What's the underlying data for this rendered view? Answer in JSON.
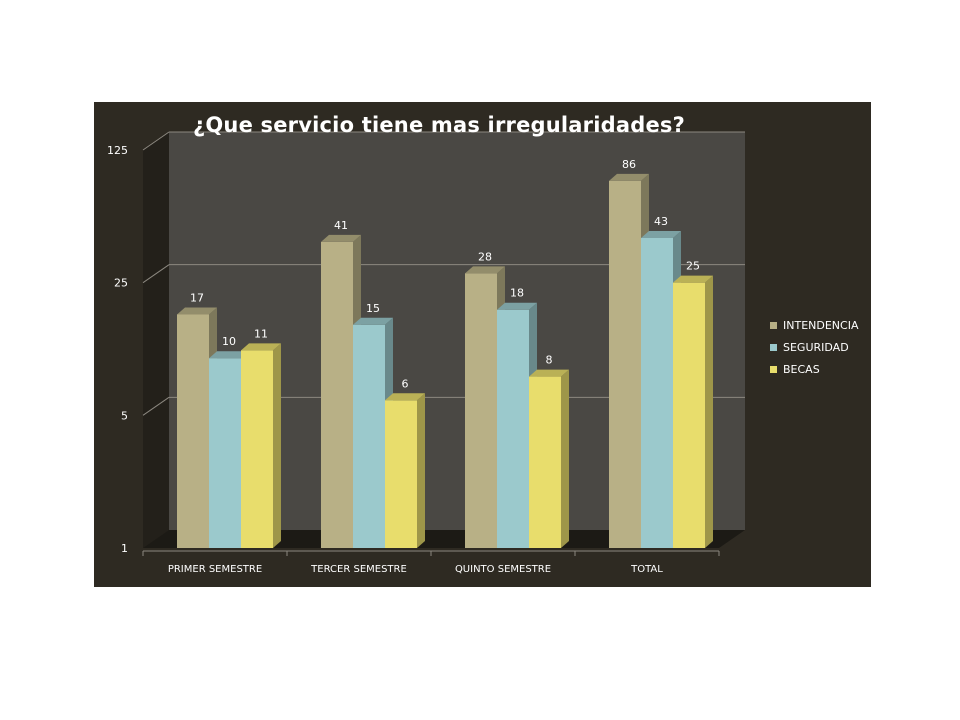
{
  "chart_data": {
    "type": "bar",
    "title": "¿Que servicio tiene mas irregularidades?",
    "categories": [
      "PRIMER SEMESTRE",
      "TERCER SEMESTRE",
      "QUINTO SEMESTRE",
      "TOTAL"
    ],
    "series": [
      {
        "name": "INTENDENCIA",
        "values": [
          17,
          41,
          28,
          86
        ],
        "color": "#b8b086"
      },
      {
        "name": "SEGURIDAD",
        "values": [
          10,
          15,
          18,
          43
        ],
        "color": "#9bc9cc"
      },
      {
        "name": "BECAS",
        "values": [
          11,
          6,
          8,
          25
        ],
        "color": "#e8dd6c"
      }
    ],
    "yscale": "log",
    "ylim": [
      1,
      125
    ],
    "yticks": [
      1,
      5,
      25,
      125
    ],
    "ytick_labels": [
      "1",
      "5",
      "25",
      "125"
    ],
    "grid": true,
    "legend_position": "right"
  },
  "colors": {
    "panel_background": "#2e2a22",
    "plot_background": "#4a4844",
    "gridline": "#8c8880",
    "text": "#ffffff"
  }
}
